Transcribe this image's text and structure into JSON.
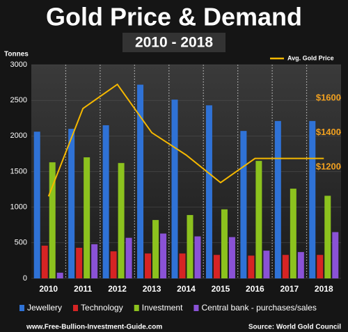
{
  "chart_data": {
    "type": "bar",
    "title": "Gold Price & Demand",
    "subtitle": "2010 - 2018",
    "y_label": "Tonnes",
    "categories": [
      "2010",
      "2011",
      "2012",
      "2013",
      "2014",
      "2015",
      "2016",
      "2017",
      "2018"
    ],
    "series": [
      {
        "name": "Jewellery",
        "color": "#2f72d6",
        "values": [
          2060,
          2100,
          2150,
          2720,
          2510,
          2430,
          2070,
          2210,
          2210
        ]
      },
      {
        "name": "Technology",
        "color": "#d62424",
        "values": [
          460,
          430,
          380,
          350,
          350,
          330,
          320,
          330,
          330
        ]
      },
      {
        "name": "Investment",
        "color": "#8cc21e",
        "values": [
          1630,
          1700,
          1620,
          820,
          890,
          970,
          1650,
          1260,
          1160
        ]
      },
      {
        "name": "Central bank - purchases/sales",
        "color": "#8a52d6",
        "values": [
          80,
          480,
          570,
          630,
          590,
          580,
          390,
          370,
          650
        ]
      },
      {
        "name": "Avg. Gold Price",
        "color": "#f5b800",
        "type": "line",
        "axis": "y2",
        "values": [
          1030,
          1540,
          1680,
          1400,
          1270,
          1110,
          1250,
          1250,
          1250
        ]
      }
    ],
    "ylim": [
      0,
      3000
    ],
    "yticks": [
      0,
      500,
      1000,
      1500,
      2000,
      2500,
      3000
    ],
    "y2lim": [
      554,
      1794
    ],
    "y2ticks": [
      {
        "value": 1200,
        "label": "$1200"
      },
      {
        "value": 1400,
        "label": "$1400"
      },
      {
        "value": 1600,
        "label": "$1600"
      }
    ],
    "grid": true,
    "legend": "bottom",
    "footer_left": "www.Free-Bullion-Investment-Guide.com",
    "footer_right": "Source: World Gold Council"
  }
}
